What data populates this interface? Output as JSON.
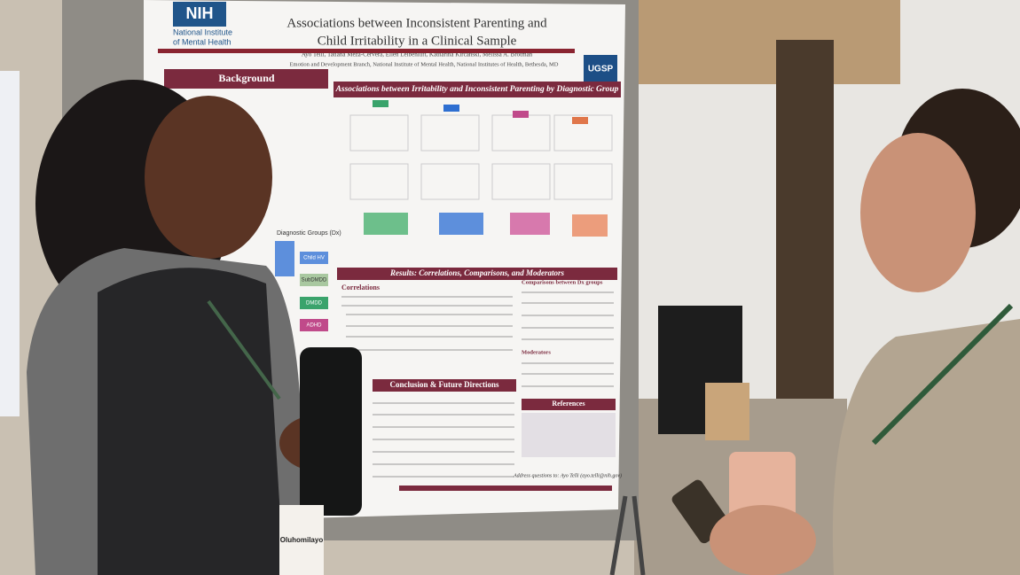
{
  "poster": {
    "logo": "NIH",
    "institute": [
      "National Institute",
      "of Mental Health"
    ],
    "title": [
      "Associations between Inconsistent Parenting and",
      "Child Irritability in a Clinical Sample"
    ],
    "authors": "Ayo Telli, Tatiana Meza-Cervera, Ellen Leibenluft, Katharina Kircanski, Melissa A. Brotman",
    "affiliation": "Emotion and Development Branch, National Institute of Mental Health, National Institutes of Health, Bethesda, MD",
    "badge": "UGSP",
    "background_heading": "Background",
    "figure_heading": "Associations between Irritability and Inconsistent Parenting by Diagnostic Group",
    "dx_heading": "Diagnostic Groups (Dx)",
    "dx_groups": [
      "Child HV",
      "SubDMDD",
      "DMDD",
      "ADHD"
    ],
    "results_heading": "Results: Correlations, Comparisons, and Moderators",
    "correlations_heading": "Correlations",
    "comparisons_heading": "Comparisons between Dx groups",
    "moderators_heading": "Moderators",
    "conclusion_heading": "Conclusion & Future Directions",
    "references_heading": "References",
    "contact": "Address questions to: Ayo Telli (ayo.telli@nih.gov)"
  },
  "name_badge": "Oluhomilayo"
}
